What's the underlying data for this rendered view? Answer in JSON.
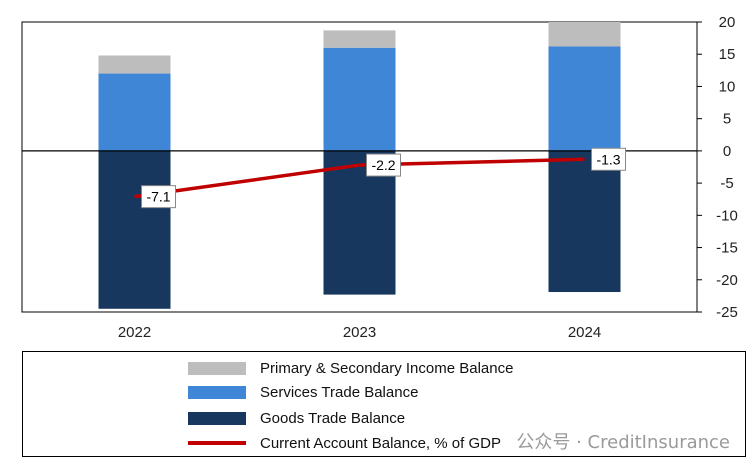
{
  "chart_data": {
    "type": "bar",
    "stacked": true,
    "categories": [
      "2022",
      "2023",
      "2024"
    ],
    "series": [
      {
        "name": "Goods Trade Balance",
        "kind": "bar",
        "color": "#17375e",
        "values": [
          -24.5,
          -22.3,
          -21.9
        ]
      },
      {
        "name": "Services Trade Balance",
        "kind": "bar",
        "color": "#3f86d6",
        "values": [
          12.0,
          16.0,
          16.2
        ]
      },
      {
        "name": "Primary  & Secondary Income Balance",
        "kind": "bar",
        "color": "#bdbdbd",
        "values": [
          2.8,
          2.7,
          3.8
        ]
      },
      {
        "name": "Current Account Balance,  % of GDP",
        "kind": "line",
        "color": "#c00000",
        "values": [
          -7.1,
          -2.2,
          -1.3
        ]
      }
    ],
    "data_labels": [
      "-7.1",
      "-2.2",
      "-1.3"
    ],
    "yticks": [
      "20",
      "15",
      "10",
      "5",
      "0",
      "-5",
      "-10",
      "-15",
      "-20",
      "-25"
    ],
    "ylim": [
      -25,
      20
    ],
    "yaxis_position": "right",
    "grid": false,
    "legend_position": "bottom"
  },
  "legend": {
    "items": [
      {
        "label": "Primary  & Secondary Income Balance",
        "color": "#bdbdbd",
        "kind": "swatch"
      },
      {
        "label": "Services Trade Balance",
        "color": "#3f86d6",
        "kind": "swatch"
      },
      {
        "label": "Goods Trade Balance",
        "color": "#17375e",
        "kind": "swatch"
      },
      {
        "label": "Current Account Balance,  % of GDP",
        "color": "#c00000",
        "kind": "line"
      }
    ]
  },
  "watermark": "公众号 · CreditInsurance"
}
